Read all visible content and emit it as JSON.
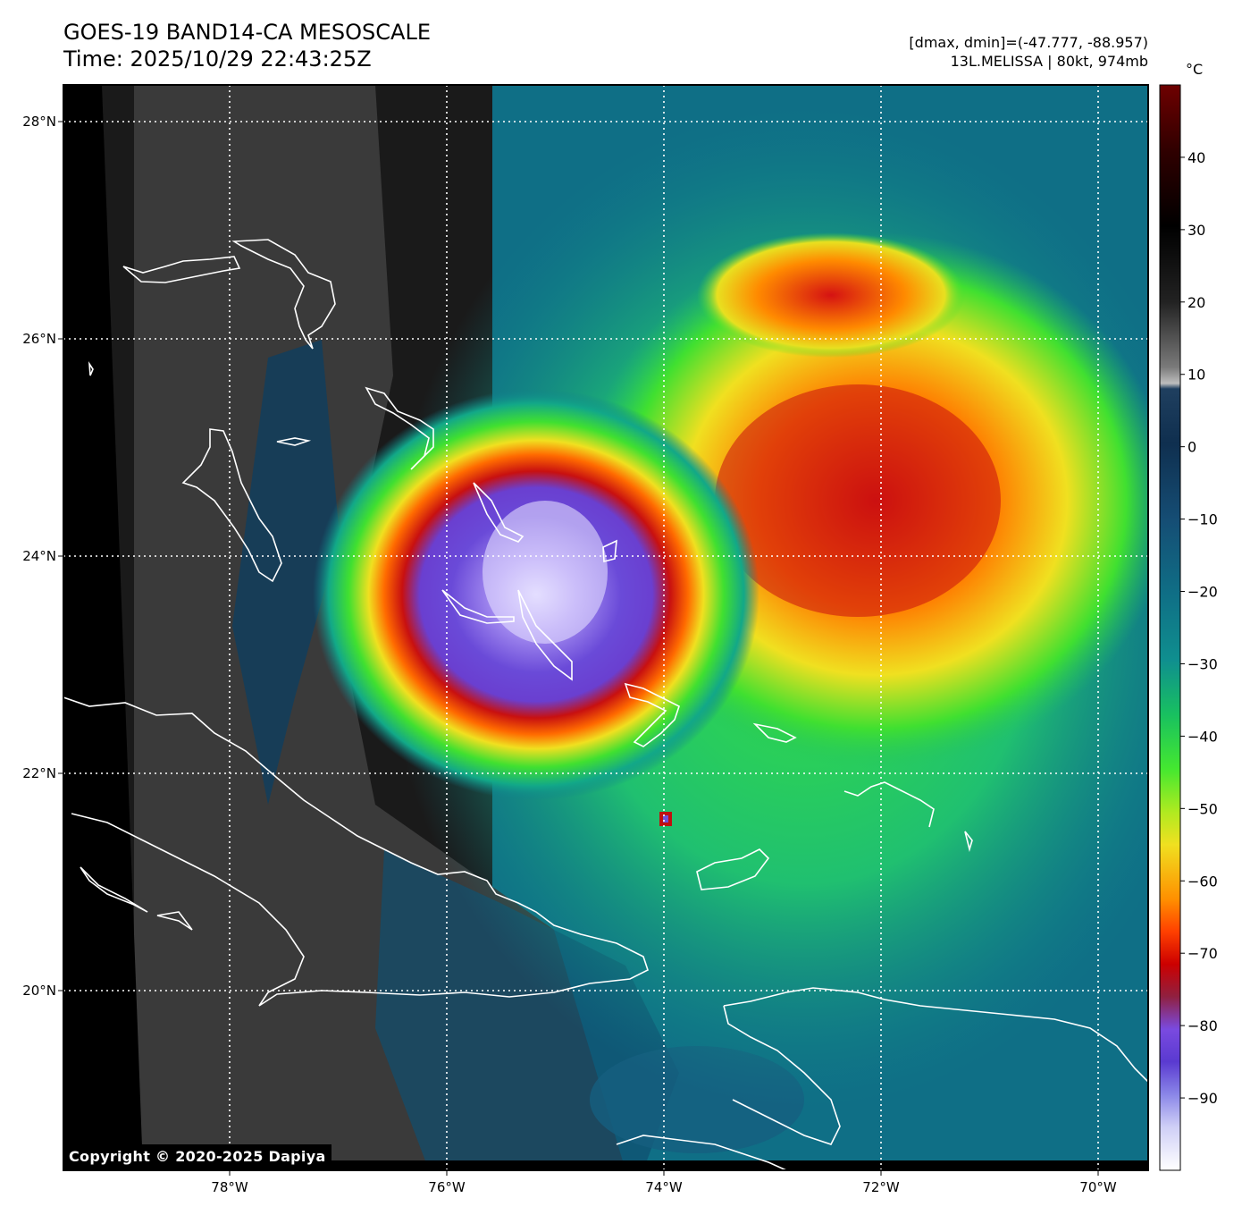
{
  "header": {
    "title_line1": "GOES-19 BAND14-CA MESOSCALE",
    "title_line2": "Time: 2025/10/29 22:43:25Z",
    "dmax_dmin": "[dmax, dmin]=(-47.777, -88.957)",
    "storm_info": "13L.MELISSA | 80kt, 974mb"
  },
  "map": {
    "lon_ticks": [
      {
        "value": -78,
        "label": "78°W"
      },
      {
        "value": -76,
        "label": "76°W"
      },
      {
        "value": -74,
        "label": "74°W"
      },
      {
        "value": -72,
        "label": "72°W"
      },
      {
        "value": -70,
        "label": "70°W"
      }
    ],
    "lat_ticks": [
      {
        "value": 28,
        "label": "28°N"
      },
      {
        "value": 26,
        "label": "26°N"
      },
      {
        "value": 24,
        "label": "24°N"
      },
      {
        "value": 22,
        "label": "22°N"
      },
      {
        "value": 20,
        "label": "20°N"
      }
    ],
    "gridlines": true,
    "storm_center": {
      "lon": -75.0,
      "lat": 23.5
    }
  },
  "colorbar": {
    "unit": "°C",
    "range": [
      -100,
      50
    ],
    "ticks": [
      {
        "value": 40,
        "label": "40"
      },
      {
        "value": 30,
        "label": "30"
      },
      {
        "value": 20,
        "label": "20"
      },
      {
        "value": 10,
        "label": "10"
      },
      {
        "value": 0,
        "label": "0"
      },
      {
        "value": -10,
        "label": "−10"
      },
      {
        "value": -20,
        "label": "−20"
      },
      {
        "value": -30,
        "label": "−30"
      },
      {
        "value": -40,
        "label": "−40"
      },
      {
        "value": -50,
        "label": "−50"
      },
      {
        "value": -60,
        "label": "−60"
      },
      {
        "value": -70,
        "label": "−70"
      },
      {
        "value": -80,
        "label": "−80"
      },
      {
        "value": -90,
        "label": "−90"
      }
    ],
    "colors": {
      "dark_red": "#6e0000",
      "black": "#000000",
      "gray": "#8a8a8a",
      "dark_blue": "#0f2f4f",
      "teal": "#0f7f8f",
      "green": "#33e533",
      "yellow": "#f0e020",
      "orange": "#ff8000",
      "red": "#dd1010",
      "purple": "#6a4ad8",
      "white": "#f4f4ff"
    }
  },
  "footer": {
    "copyright": "Copyright © 2020-2025 Dapiya"
  }
}
